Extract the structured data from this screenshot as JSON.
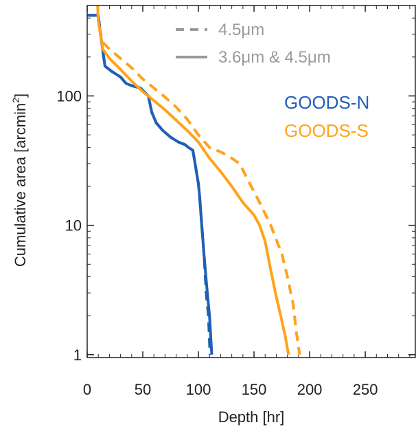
{
  "chart_data": {
    "type": "line",
    "xlabel": "Depth [hr]",
    "ylabel": "Cumulative area [arcmin",
    "ylabel_sup": "2",
    "ylabel_close": "]",
    "xlim": [
      0,
      295
    ],
    "ylim": [
      0.95,
      500
    ],
    "yscale": "log",
    "x_ticks": [
      0,
      50,
      100,
      150,
      200,
      250
    ],
    "y_ticks": [
      1,
      10,
      100
    ],
    "legend": {
      "placement": "top-center",
      "entries": [
        {
          "label": "4.5μm",
          "style": "dashed"
        },
        {
          "label": "3.6μm & 4.5μm",
          "style": "solid"
        }
      ],
      "color": "#9a9a9a"
    },
    "fields": [
      {
        "label": "GOODS-N",
        "color": "#1f5fb5"
      },
      {
        "label": "GOODS-S",
        "color": "#ffa31a"
      }
    ],
    "series": [
      {
        "field": "GOODS-N",
        "style": "solid",
        "color": "#1f5fb5",
        "x": [
          0,
          10,
          12,
          16,
          22,
          30,
          35,
          40,
          48,
          55,
          58,
          62,
          68,
          75,
          82,
          88,
          91,
          95,
          97,
          98.5,
          100,
          101,
          103,
          105,
          108,
          110,
          112
        ],
        "y": [
          420,
          420,
          300,
          170,
          155,
          140,
          125,
          120,
          115,
          100,
          75,
          62,
          54,
          48,
          44,
          42,
          40,
          38,
          30,
          25,
          21,
          17,
          10,
          6,
          3,
          2,
          1
        ]
      },
      {
        "field": "GOODS-N",
        "style": "dashed",
        "color": "#1f5fb5",
        "x": [
          0,
          10,
          12,
          16,
          22,
          30,
          35,
          40,
          48,
          55,
          58,
          62,
          68,
          75,
          82,
          88,
          91,
          95,
          97,
          98.5,
          100,
          101,
          103,
          105,
          107,
          109,
          110.5
        ],
        "y": [
          420,
          420,
          300,
          170,
          155,
          140,
          125,
          120,
          115,
          100,
          75,
          62,
          54,
          48,
          44,
          42,
          40,
          38,
          30,
          25,
          21,
          17,
          10,
          6,
          3,
          2,
          1
        ]
      },
      {
        "field": "GOODS-S",
        "style": "solid",
        "color": "#ffa31a",
        "x": [
          9,
          10,
          14,
          20,
          30,
          40,
          50,
          60,
          70,
          80,
          90,
          100,
          110,
          120,
          130,
          140,
          150,
          155,
          160,
          165,
          170,
          174,
          178,
          181
        ],
        "y": [
          600,
          380,
          230,
          195,
          160,
          130,
          108,
          92,
          78,
          65,
          54,
          44,
          33,
          26,
          20,
          15,
          12,
          10,
          7.5,
          4.5,
          2.8,
          2.0,
          1.4,
          1.0
        ]
      },
      {
        "field": "GOODS-S",
        "style": "dashed",
        "color": "#ffa31a",
        "x": [
          9,
          10,
          14,
          20,
          30,
          40,
          50,
          60,
          70,
          80,
          90,
          100,
          110,
          120,
          130,
          137,
          145,
          155,
          165,
          175,
          180,
          185,
          188,
          191
        ],
        "y": [
          600,
          380,
          260,
          230,
          195,
          165,
          135,
          115,
          98,
          82,
          66,
          50,
          40,
          37,
          33,
          30,
          22,
          15,
          10,
          6,
          4,
          2.5,
          1.5,
          1.0
        ]
      }
    ]
  }
}
